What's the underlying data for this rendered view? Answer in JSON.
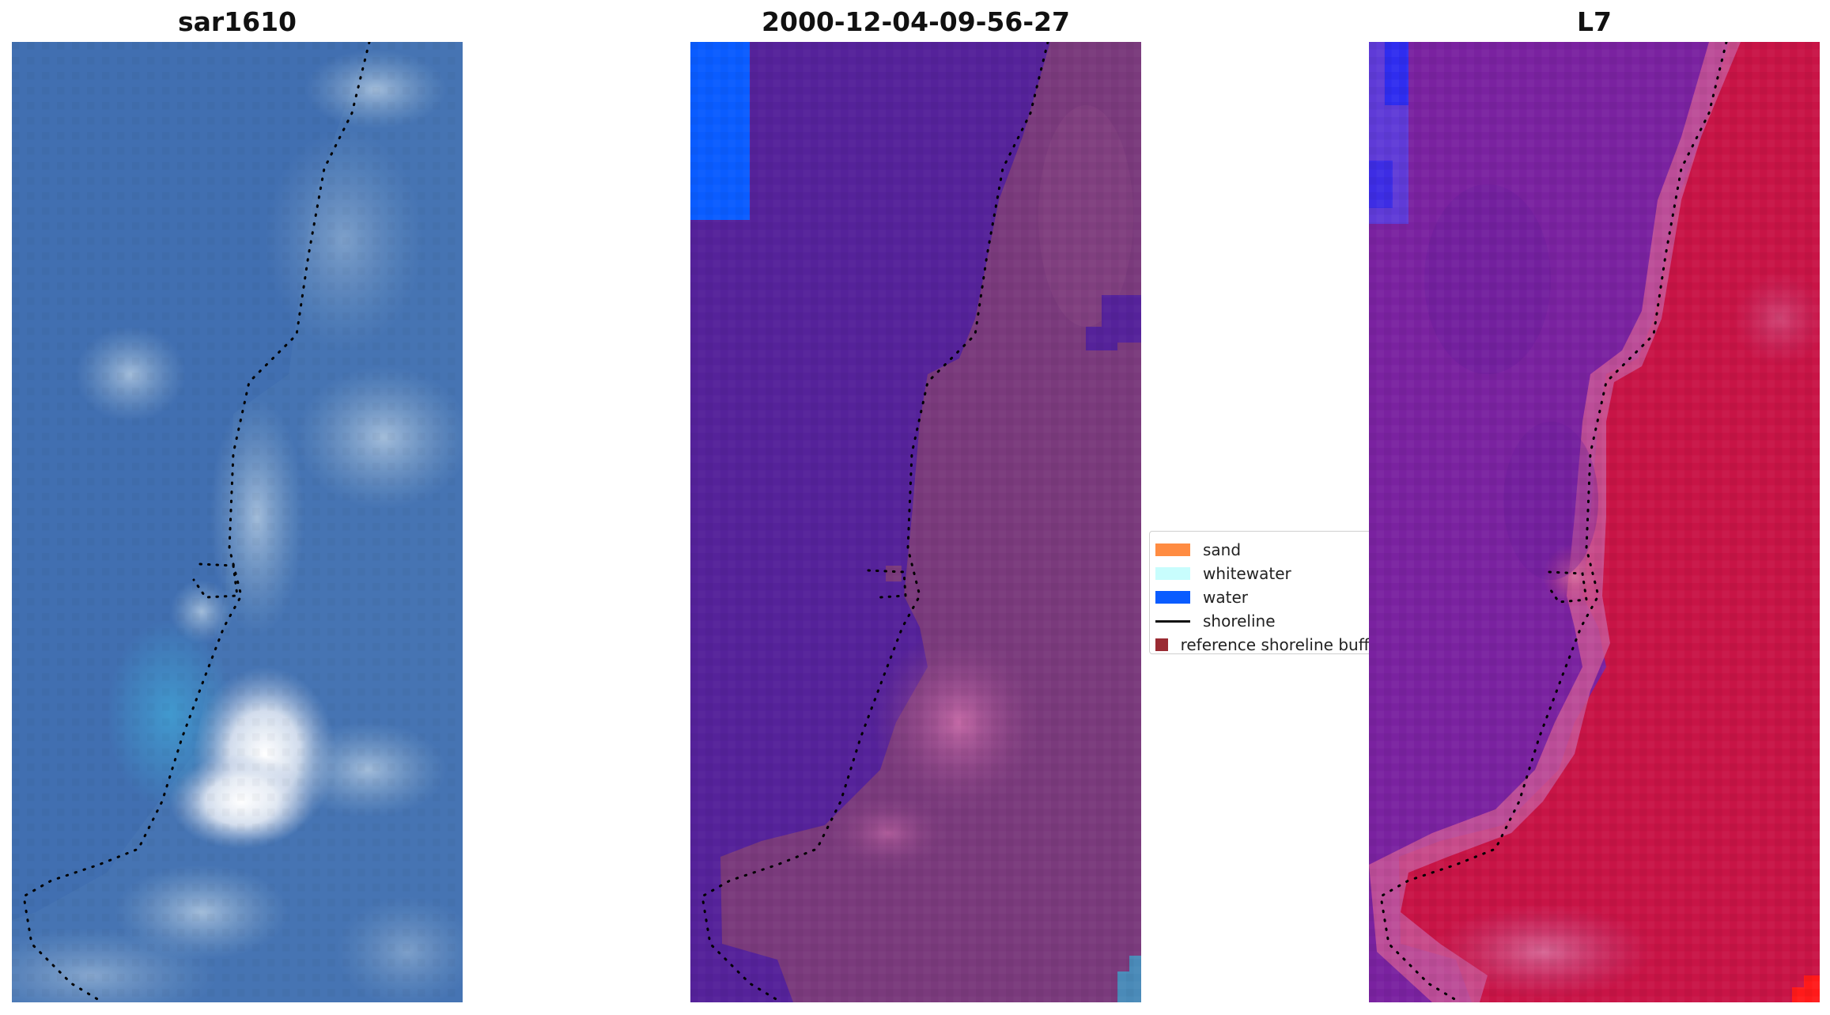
{
  "panels": [
    {
      "id": "sar",
      "title": "sar1610"
    },
    {
      "id": "classif",
      "title": "2000-12-04-09-56-27"
    },
    {
      "id": "l7",
      "title": "L7"
    }
  ],
  "legend": {
    "items": [
      {
        "label": "sand",
        "type": "patch",
        "color": "#ff8c42"
      },
      {
        "label": "whitewater",
        "type": "patch",
        "color": "#c8fdfd"
      },
      {
        "label": "water",
        "type": "patch",
        "color": "#0a5cff"
      },
      {
        "label": "shoreline",
        "type": "line",
        "color": "#111111"
      },
      {
        "label": "reference shoreline buffer",
        "type": "patch",
        "color": "#9a2b33"
      }
    ]
  },
  "colors": {
    "sar_base": "#4a7ab8",
    "classif_water": "#55229a",
    "classif_land": "#7a3a7c",
    "water_blue": "#0a5cff",
    "l7_water": "#7a22a0",
    "l7_land": "#c81446",
    "shoreline": "#000000"
  }
}
